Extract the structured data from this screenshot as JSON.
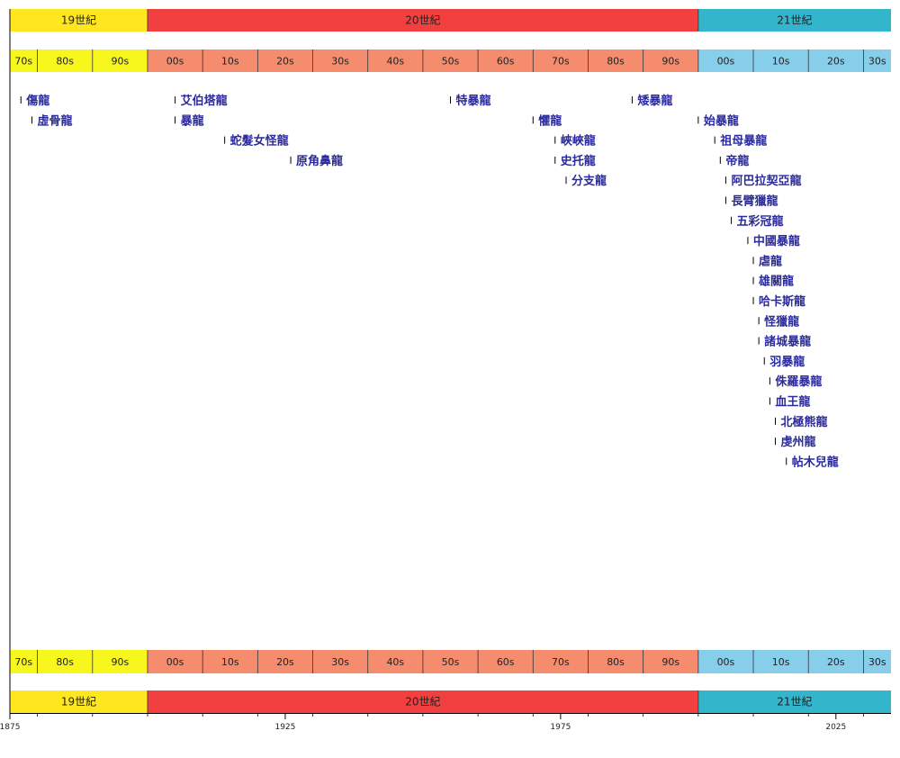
{
  "colors": {
    "c19": "#FFE720",
    "c20": "#F24040",
    "c21": "#33B5CC",
    "d19": "#F7F71E",
    "d20": "#F58C6E",
    "d21": "#87CEEB",
    "taxon_text": "#2B2B9E",
    "tick": "#000000"
  },
  "chart_data": {
    "type": "timeline",
    "title": "",
    "x_range": [
      1875,
      2035
    ],
    "centuries": [
      {
        "label": "19世紀",
        "start": 1875,
        "end": 1900,
        "color_key": "c19"
      },
      {
        "label": "20世紀",
        "start": 1900,
        "end": 2000,
        "color_key": "c20"
      },
      {
        "label": "21世紀",
        "start": 2000,
        "end": 2035,
        "color_key": "c21"
      }
    ],
    "decades": [
      {
        "label": "70s",
        "start": 1875,
        "end": 1880,
        "color_key": "d19"
      },
      {
        "label": "80s",
        "start": 1880,
        "end": 1890,
        "color_key": "d19"
      },
      {
        "label": "90s",
        "start": 1890,
        "end": 1900,
        "color_key": "d19"
      },
      {
        "label": "00s",
        "start": 1900,
        "end": 1910,
        "color_key": "d20"
      },
      {
        "label": "10s",
        "start": 1910,
        "end": 1920,
        "color_key": "d20"
      },
      {
        "label": "20s",
        "start": 1920,
        "end": 1930,
        "color_key": "d20"
      },
      {
        "label": "30s",
        "start": 1930,
        "end": 1940,
        "color_key": "d20"
      },
      {
        "label": "40s",
        "start": 1940,
        "end": 1950,
        "color_key": "d20"
      },
      {
        "label": "50s",
        "start": 1950,
        "end": 1960,
        "color_key": "d20"
      },
      {
        "label": "60s",
        "start": 1960,
        "end": 1970,
        "color_key": "d20"
      },
      {
        "label": "70s",
        "start": 1970,
        "end": 1980,
        "color_key": "d20"
      },
      {
        "label": "80s",
        "start": 1980,
        "end": 1990,
        "color_key": "d20"
      },
      {
        "label": "90s",
        "start": 1990,
        "end": 2000,
        "color_key": "d20"
      },
      {
        "label": "00s",
        "start": 2000,
        "end": 2010,
        "color_key": "d21"
      },
      {
        "label": "10s",
        "start": 2010,
        "end": 2020,
        "color_key": "d21"
      },
      {
        "label": "20s",
        "start": 2020,
        "end": 2030,
        "color_key": "d21"
      },
      {
        "label": "30s",
        "start": 2030,
        "end": 2035,
        "color_key": "d21"
      }
    ],
    "axis_ticks": [
      1875,
      1925,
      1975,
      2025
    ],
    "events": [
      {
        "year": 1877,
        "label": "傷龍"
      },
      {
        "year": 1879,
        "label": "虛骨龍"
      },
      {
        "year": 1905,
        "label": "艾伯塔龍"
      },
      {
        "year": 1905,
        "label": "暴龍"
      },
      {
        "year": 1914,
        "label": "蛇髮女怪龍"
      },
      {
        "year": 1926,
        "label": "原角鼻龍"
      },
      {
        "year": 1955,
        "label": "特暴龍"
      },
      {
        "year": 1970,
        "label": "懼龍"
      },
      {
        "year": 1974,
        "label": "峽峽龍"
      },
      {
        "year": 1974,
        "label": "史托龍"
      },
      {
        "year": 1976,
        "label": "分支龍"
      },
      {
        "year": 1988,
        "label": "矮暴龍"
      },
      {
        "year": 2000,
        "label": "始暴龍"
      },
      {
        "year": 2003,
        "label": "祖母暴龍"
      },
      {
        "year": 2004,
        "label": "帝龍"
      },
      {
        "year": 2005,
        "label": "阿巴拉契亞龍"
      },
      {
        "year": 2005,
        "label": "長臂獵龍"
      },
      {
        "year": 2006,
        "label": "五彩冠龍"
      },
      {
        "year": 2009,
        "label": "中國暴龍"
      },
      {
        "year": 2010,
        "label": "虐龍"
      },
      {
        "year": 2010,
        "label": "雄關龍"
      },
      {
        "year": 2010,
        "label": "哈卡斯龍"
      },
      {
        "year": 2011,
        "label": "怪獵龍"
      },
      {
        "year": 2011,
        "label": "諸城暴龍"
      },
      {
        "year": 2012,
        "label": "羽暴龍"
      },
      {
        "year": 2013,
        "label": "侏羅暴龍"
      },
      {
        "year": 2013,
        "label": "血王龍"
      },
      {
        "year": 2014,
        "label": "北極熊龍"
      },
      {
        "year": 2014,
        "label": "虔州龍"
      },
      {
        "year": 2016,
        "label": "帖木兒龍"
      }
    ]
  }
}
